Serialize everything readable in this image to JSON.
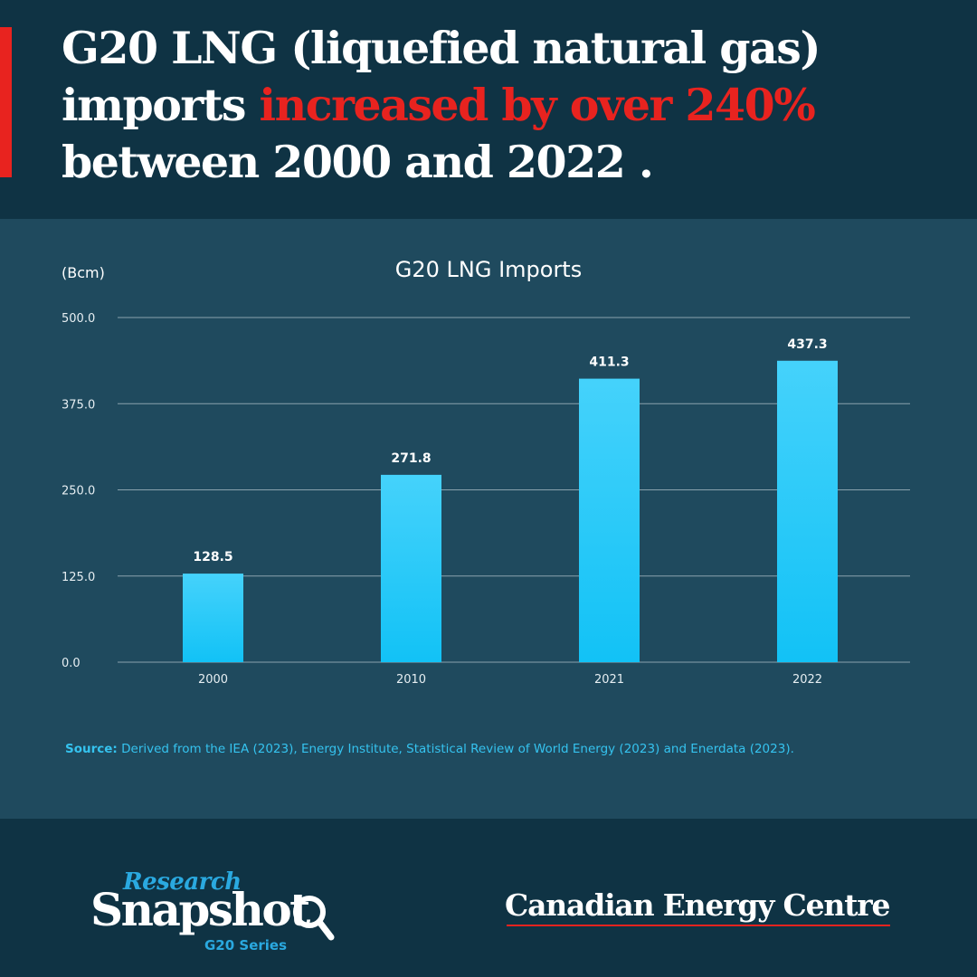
{
  "headline": {
    "line1": "G20 LNG (liquefied natural gas)",
    "line2_start": "imports ",
    "line2_highlight": "increased by over 240%",
    "line3": "between 2000 and 2022 ."
  },
  "colors": {
    "background": "#0f3344",
    "panel": "#1f4a5e",
    "accent": "#e8231f",
    "bar_top": "#45d2fb",
    "bar_bottom": "#12c2f6",
    "source_text": "#35c3ef"
  },
  "chart_data": {
    "type": "bar",
    "title": "G20 LNG Imports",
    "ylabel": "(Bcm)",
    "xlabel": "",
    "categories": [
      "2000",
      "2010",
      "2021",
      "2022"
    ],
    "values": [
      128.5,
      271.8,
      411.3,
      437.3
    ],
    "value_labels": [
      "128.5",
      "271.8",
      "411.3",
      "437.3"
    ],
    "ylim": [
      0,
      500
    ],
    "yticks": [
      "0.0",
      "125.0",
      "250.0",
      "375.0",
      "500.0"
    ],
    "ytick_values": [
      0,
      125,
      250,
      375,
      500
    ],
    "grid": true,
    "legend": "none"
  },
  "source": {
    "label": "Source:",
    "text": " Derived from the IEA (2023), Energy Institute, Statistical Review of World Energy (2023) and Enerdata (2023)."
  },
  "footer": {
    "snapshot_research": "Research",
    "snapshot_main": "Snapshot",
    "snapshot_series": "G20 Series",
    "cec_name": "Canadian Energy Centre"
  }
}
